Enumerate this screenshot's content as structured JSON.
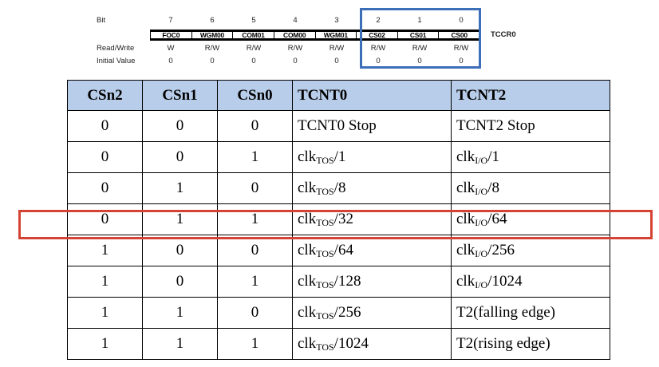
{
  "register": {
    "row_labels": {
      "bit": "Bit",
      "read_write": "Read/Write",
      "initial_value": "Initial Value"
    },
    "name": "TCCR0",
    "bits": [
      {
        "number": "7",
        "name": "FOC0",
        "rw": "W",
        "init": "0"
      },
      {
        "number": "6",
        "name": "WGM00",
        "rw": "R/W",
        "init": "0"
      },
      {
        "number": "5",
        "name": "COM01",
        "rw": "R/W",
        "init": "0"
      },
      {
        "number": "4",
        "name": "COM00",
        "rw": "R/W",
        "init": "0"
      },
      {
        "number": "3",
        "name": "WGM01",
        "rw": "R/W",
        "init": "0"
      },
      {
        "number": "2",
        "name": "CS02",
        "rw": "R/W",
        "init": "0"
      },
      {
        "number": "1",
        "name": "CS01",
        "rw": "R/W",
        "init": "0"
      },
      {
        "number": "0",
        "name": "CS00",
        "rw": "R/W",
        "init": "0"
      }
    ],
    "highlight_color": "#3d6eb8"
  },
  "table": {
    "header_bg": "#b8cde9",
    "highlight_color": "#d44334",
    "headers": [
      "CSn2",
      "CSn1",
      "CSn0",
      "TCNT0",
      "TCNT2"
    ],
    "rows": [
      {
        "cs2": "0",
        "cs1": "0",
        "cs0": "0",
        "t0": {
          "main": "TCNT0  Stop",
          "sub": "",
          "tail": ""
        },
        "t2": {
          "main": "TCNT2  Stop",
          "sub": "",
          "tail": ""
        }
      },
      {
        "cs2": "0",
        "cs1": "0",
        "cs0": "1",
        "t0": {
          "main": "clk",
          "sub": "TOS",
          "tail": "/1"
        },
        "t2": {
          "main": "clk",
          "sub": "I/O",
          "tail": "/1"
        }
      },
      {
        "cs2": "0",
        "cs1": "1",
        "cs0": "0",
        "t0": {
          "main": "clk",
          "sub": "TOS",
          "tail": "/8"
        },
        "t2": {
          "main": "clk",
          "sub": "I/O",
          "tail": "/8"
        }
      },
      {
        "cs2": "0",
        "cs1": "1",
        "cs0": "1",
        "t0": {
          "main": "clk",
          "sub": "TOS",
          "tail": "/32"
        },
        "t2": {
          "main": "clk",
          "sub": "I/O",
          "tail": "/64"
        }
      },
      {
        "cs2": "1",
        "cs1": "0",
        "cs0": "0",
        "t0": {
          "main": "clk",
          "sub": "TOS",
          "tail": "/64"
        },
        "t2": {
          "main": "clk",
          "sub": "I/O",
          "tail": "/256"
        }
      },
      {
        "cs2": "1",
        "cs1": "0",
        "cs0": "1",
        "t0": {
          "main": "clk",
          "sub": "TOS",
          "tail": "/128"
        },
        "t2": {
          "main": "clk",
          "sub": "I/O",
          "tail": "/1024"
        }
      },
      {
        "cs2": "1",
        "cs1": "1",
        "cs0": "0",
        "t0": {
          "main": "clk",
          "sub": "TOS",
          "tail": "/256"
        },
        "t2": {
          "main": "T2(falling edge)",
          "sub": "",
          "tail": ""
        }
      },
      {
        "cs2": "1",
        "cs1": "1",
        "cs0": "1",
        "t0": {
          "main": "clk",
          "sub": "TOS",
          "tail": "/1024"
        },
        "t2": {
          "main": "T2(rising edge)",
          "sub": "",
          "tail": ""
        }
      }
    ]
  }
}
